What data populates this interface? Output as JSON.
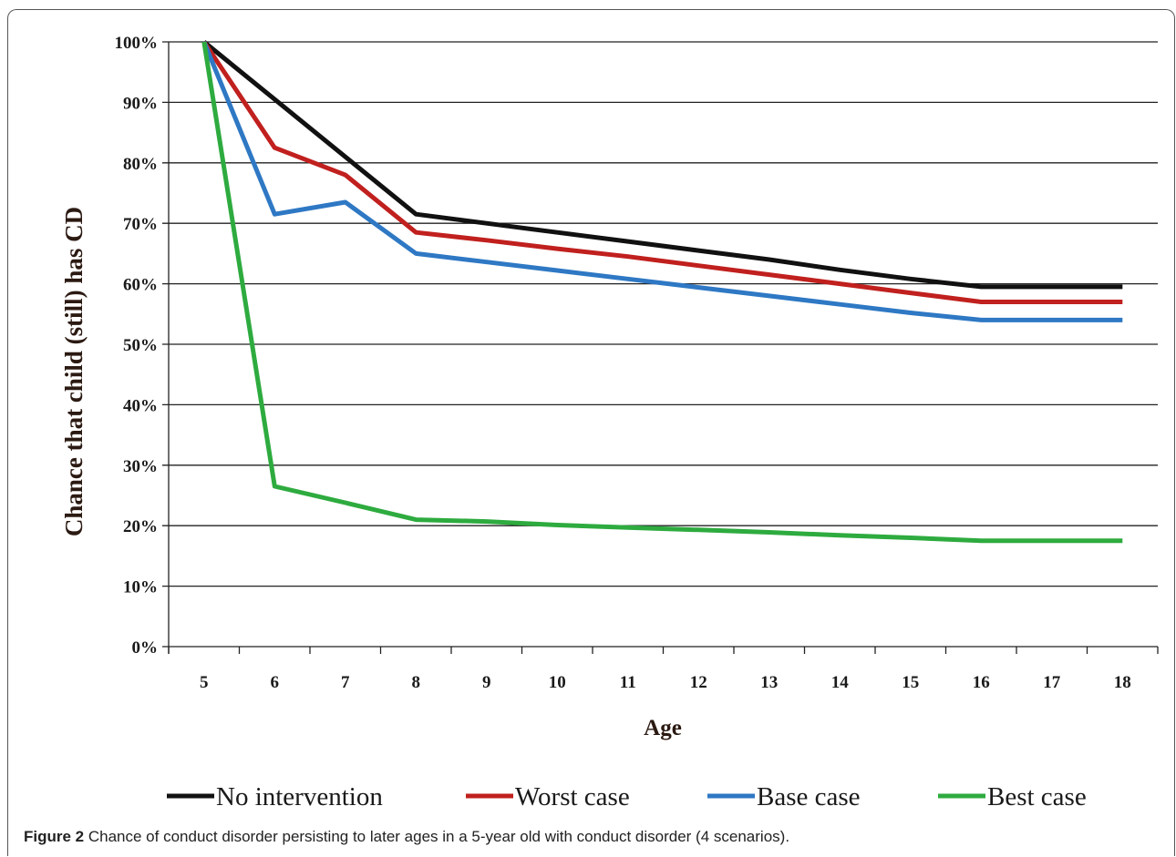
{
  "caption": {
    "label": "Figure 2",
    "text": "Chance of conduct disorder persisting to later ages in a 5-year old with conduct disorder (4 scenarios)",
    "end": "."
  },
  "chart_data": {
    "type": "line",
    "xlabel": "Age",
    "ylabel": "Chance that child (still) has CD",
    "categories": [
      "5",
      "6",
      "7",
      "8",
      "9",
      "10",
      "11",
      "12",
      "13",
      "14",
      "15",
      "16",
      "17",
      "18"
    ],
    "ylim": [
      0,
      100
    ],
    "yticks": [
      "0%",
      "10%",
      "20%",
      "30%",
      "40%",
      "50%",
      "60%",
      "70%",
      "80%",
      "90%",
      "100%"
    ],
    "grid": "horizontal",
    "legend": "bottom",
    "series": [
      {
        "name": "No intervention",
        "color": "#111111",
        "values": [
          100,
          90.5,
          81,
          71.5,
          70,
          68.5,
          67,
          65.5,
          64,
          62.3,
          60.8,
          59.5,
          59.5,
          59.5
        ]
      },
      {
        "name": "Worst case",
        "color": "#c0201e",
        "values": [
          100,
          82.5,
          78,
          68.5,
          67.2,
          65.8,
          64.5,
          63,
          61.5,
          60,
          58.5,
          57,
          57,
          57
        ]
      },
      {
        "name": "Base case",
        "color": "#2e78c4",
        "values": [
          100,
          71.5,
          73.5,
          65,
          63.6,
          62.2,
          60.8,
          59.4,
          58,
          56.6,
          55.2,
          54,
          54,
          54
        ]
      },
      {
        "name": "Best case",
        "color": "#2eab3f",
        "values": [
          100,
          26.5,
          23.8,
          21,
          20.7,
          20.1,
          19.7,
          19.3,
          18.9,
          18.4,
          18,
          17.5,
          17.5,
          17.5
        ]
      }
    ]
  }
}
